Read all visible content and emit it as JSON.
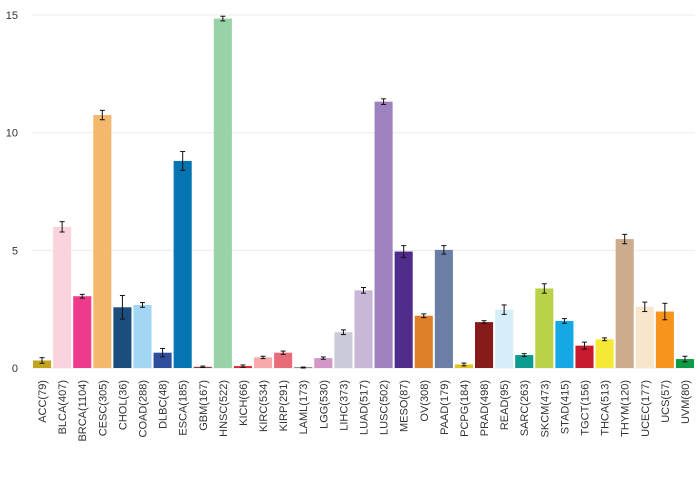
{
  "chart_data": {
    "type": "bar",
    "title": "",
    "xlabel": "",
    "ylabel": "",
    "ylim": [
      0,
      15.3
    ],
    "yticks": [
      "0",
      "5",
      "10",
      "15"
    ],
    "grid": true,
    "legend": "none",
    "categories": [
      "ACC(79)",
      "BLCA(407)",
      "BRCA(1104)",
      "CESC(305)",
      "CHOL(36)",
      "COAD(288)",
      "DLBC(48)",
      "ESCA(185)",
      "GBM(167)",
      "HNSC(522)",
      "KICH(66)",
      "KIRC(534)",
      "KIRP(291)",
      "LAML(173)",
      "LGG(530)",
      "LIHC(373)",
      "LUAD(517)",
      "LUSC(502)",
      "MESO(87)",
      "OV(308)",
      "PAAD(179)",
      "PCPG(184)",
      "PRAD(498)",
      "READ(95)",
      "SARC(263)",
      "SKCM(473)",
      "STAD(415)",
      "TGCT(156)",
      "THCA(513)",
      "THYM(120)",
      "UCEC(177)",
      "UCS(57)",
      "UVM(80)"
    ],
    "values": [
      0.32,
      6.0,
      3.05,
      10.75,
      2.58,
      2.68,
      0.65,
      8.8,
      0.05,
      14.85,
      0.08,
      0.45,
      0.65,
      0.02,
      0.42,
      1.52,
      3.3,
      11.32,
      4.95,
      2.22,
      5.02,
      0.15,
      1.95,
      2.48,
      0.55,
      3.38,
      2.0,
      0.95,
      1.22,
      5.48,
      2.6,
      2.4,
      0.38
    ],
    "errors": [
      0.12,
      0.22,
      0.08,
      0.2,
      0.5,
      0.1,
      0.18,
      0.4,
      0.03,
      0.1,
      0.05,
      0.05,
      0.07,
      0.02,
      0.05,
      0.1,
      0.12,
      0.12,
      0.25,
      0.08,
      0.18,
      0.06,
      0.06,
      0.2,
      0.06,
      0.2,
      0.1,
      0.15,
      0.06,
      0.2,
      0.2,
      0.35,
      0.12
    ],
    "colors": [
      "#c3a41f",
      "#f9d4dc",
      "#ee3a8c",
      "#f4b86d",
      "#1b4e7c",
      "#a3d6f5",
      "#2f4f9c",
      "#0575b2",
      "#8b3a3a",
      "#9ad2a8",
      "#d9232e",
      "#f7aaaa",
      "#e86c78",
      "#111111",
      "#d397c7",
      "#cacada",
      "#c9b7d8",
      "#9e82c0",
      "#4f2b8a",
      "#de7f29",
      "#6b7fa6",
      "#e2c522",
      "#871a1a",
      "#d6eef9",
      "#0d9b8f",
      "#b9d24a",
      "#14a9e5",
      "#c8192f",
      "#f6e935",
      "#cdac8d",
      "#f7e5cc",
      "#f7941e",
      "#0f9a46"
    ]
  }
}
